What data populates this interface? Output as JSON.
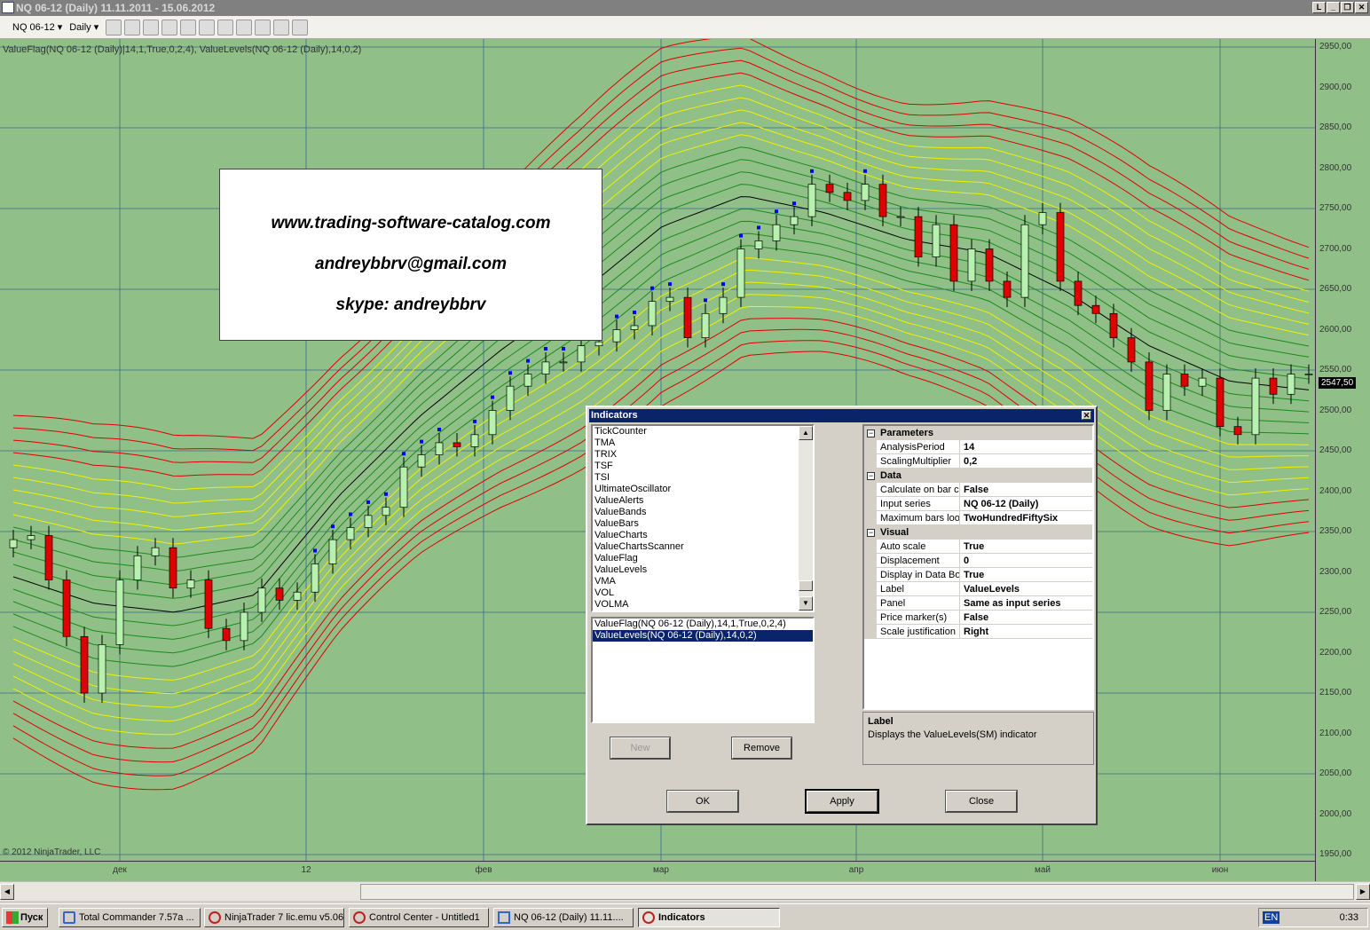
{
  "window": {
    "title": "NQ 06-12 (Daily)  11.11.2011 - 15.06.2012",
    "controls": [
      "L",
      "_",
      "❐",
      "✕"
    ]
  },
  "toolbar": {
    "instrument": "NQ 06-12",
    "interval": "Daily",
    "icons": [
      "bar-type-icon",
      "drawing-pencil-icon",
      "zoom-in-icon",
      "zoom-out-icon",
      "cursor-icon",
      "magnifier-icon",
      "strategies-icon",
      "indicators-icon",
      "chart-style-icon",
      "dollar-icon",
      "properties-icon"
    ]
  },
  "chart": {
    "legend": "ValueFlag(NQ 06-12 (Daily)|14,1,True,0,2,4), ValueLevels(NQ 06-12 (Daily),14,0,2)",
    "copyright": "© 2012 NinjaTrader, LLC",
    "watermark": [
      "www.trading-software-catalog.com",
      "andreybbrv@gmail.com",
      "skype: andreybbrv"
    ],
    "last_price": "2547,50",
    "colors": {
      "background": "#90c088",
      "up": "#b8f0b0",
      "down": "#e00000",
      "mid": "#000000",
      "green_band": "#1d8a1d",
      "yellow_band": "#f0f000",
      "red_band": "#e00000",
      "flag": "#0000ff"
    }
  },
  "chart_data": {
    "type": "candlestick",
    "price_ticks": [
      "2950,00",
      "2900,00",
      "2850,00",
      "2800,00",
      "2750,00",
      "2700,00",
      "2650,00",
      "2600,00",
      "2550,00",
      "2500,00",
      "2450,00",
      "2400,00",
      "2350,00",
      "2300,00",
      "2250,00",
      "2200,00",
      "2150,00",
      "2100,00",
      "2050,00",
      "2000,00",
      "1950,00"
    ],
    "ylim": [
      1950,
      2950
    ],
    "time_ticks": [
      "дек",
      "12",
      "фев",
      "мар",
      "апр",
      "май",
      "июн"
    ],
    "closes": [
      2340,
      2345,
      2290,
      2220,
      2150,
      2210,
      2290,
      2320,
      2330,
      2280,
      2290,
      2230,
      2215,
      2250,
      2280,
      2265,
      2275,
      2310,
      2340,
      2355,
      2370,
      2380,
      2430,
      2445,
      2460,
      2455,
      2470,
      2500,
      2530,
      2545,
      2560,
      2560,
      2580,
      2585,
      2600,
      2605,
      2635,
      2640,
      2590,
      2620,
      2640,
      2700,
      2710,
      2730,
      2740,
      2780,
      2770,
      2760,
      2780,
      2740,
      2740,
      2690,
      2730,
      2660,
      2700,
      2660,
      2640,
      2730,
      2745,
      2660,
      2630,
      2620,
      2590,
      2560,
      2500,
      2545,
      2530,
      2540,
      2480,
      2470,
      2540,
      2520,
      2545,
      2545
    ],
    "midline": [
      2294,
      2261,
      2250,
      2272,
      2393,
      2492,
      2574,
      2646,
      2728,
      2766,
      2745,
      2712,
      2695,
      2646,
      2580,
      2536,
      2525
    ]
  },
  "dialog": {
    "title": "Indicators",
    "available": [
      "TickCounter",
      "TMA",
      "TRIX",
      "TSF",
      "TSI",
      "UltimateOscillator",
      "ValueAlerts",
      "ValueBands",
      "ValueBars",
      "ValueCharts",
      "ValueChartsScanner",
      "ValueFlag",
      "ValueLevels",
      "VMA",
      "VOL",
      "VOLMA"
    ],
    "applied": [
      "ValueFlag(NQ 06-12 (Daily),14,1,True,0,2,4)",
      "ValueLevels(NQ 06-12 (Daily),14,0,2)"
    ],
    "new_label": "New",
    "remove_label": "Remove",
    "categories": [
      {
        "name": "Parameters",
        "props": [
          [
            "AnalysisPeriod",
            "14"
          ],
          [
            "ScalingMultiplier",
            "0,2"
          ]
        ]
      },
      {
        "name": "Data",
        "props": [
          [
            "Calculate on bar close",
            "False"
          ],
          [
            "Input series",
            "NQ 06-12 (Daily)"
          ],
          [
            "Maximum bars look back",
            "TwoHundredFiftySix"
          ]
        ]
      },
      {
        "name": "Visual",
        "props": [
          [
            "Auto scale",
            "True"
          ],
          [
            "Displacement",
            "0"
          ],
          [
            "Display in Data Box",
            "True"
          ],
          [
            "Label",
            "ValueLevels"
          ],
          [
            "Panel",
            "Same as input series"
          ],
          [
            "Price marker(s)",
            "False"
          ],
          [
            "Scale justification",
            "Right"
          ]
        ]
      }
    ],
    "desc_title": "Label",
    "desc_text": "Displays the ValueLevels(SM) indicator",
    "ok_label": "OK",
    "apply_label": "Apply",
    "close_label": "Close"
  },
  "taskbar": {
    "start": "Пуск",
    "tasks": [
      "Total Commander 7.57a ...",
      "NinjaTrader 7 lic.emu v5.06",
      "Control Center - Untitled1",
      "NQ 06-12 (Daily)  11.11....",
      "Indicators"
    ],
    "lang": "EN",
    "clock": "0:33"
  }
}
